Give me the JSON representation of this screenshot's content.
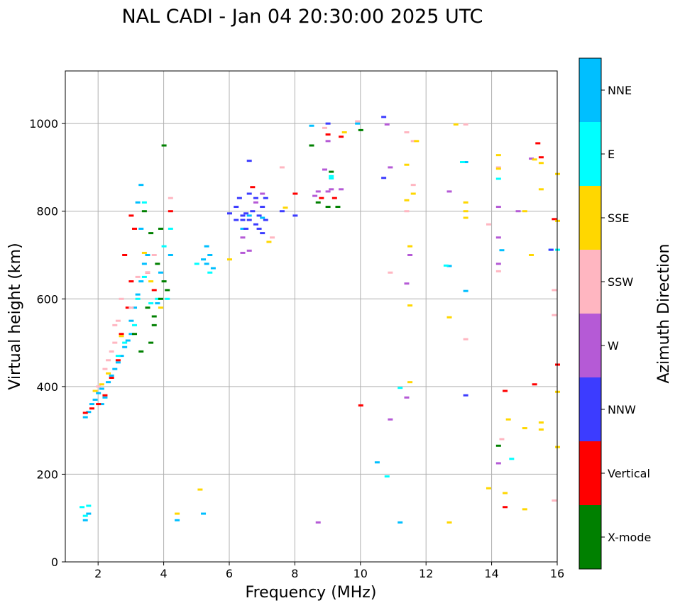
{
  "chart_data": {
    "type": "scatter",
    "title": "NAL CADI - Jan 04 20:30:00 2025 UTC",
    "xlabel": "Frequency (MHz)",
    "ylabel": "Virtual height (km)",
    "xlim": [
      1,
      16
    ],
    "ylim": [
      0,
      1120
    ],
    "xticks": [
      2,
      4,
      6,
      8,
      10,
      12,
      14,
      16
    ],
    "yticks": [
      0,
      200,
      400,
      600,
      800,
      1000
    ],
    "grid": true,
    "colorbar": {
      "label": "Azimuth Direction",
      "categories": [
        {
          "name": "X-mode",
          "color": "#008000"
        },
        {
          "name": "Vertical",
          "color": "#ff0000"
        },
        {
          "name": "NNW",
          "color": "#3c3cff"
        },
        {
          "name": "W",
          "color": "#b55ad6"
        },
        {
          "name": "SSW",
          "color": "#ffb6c1"
        },
        {
          "name": "SSE",
          "color": "#ffd700"
        },
        {
          "name": "E",
          "color": "#00ffff"
        },
        {
          "name": "NNE",
          "color": "#00bfff"
        }
      ]
    },
    "series": [
      {
        "name": "NNE",
        "points": [
          [
            1.6,
            330
          ],
          [
            1.7,
            342
          ],
          [
            1.8,
            360
          ],
          [
            1.9,
            370
          ],
          [
            2.0,
            385
          ],
          [
            2.1,
            395
          ],
          [
            2.3,
            410
          ],
          [
            2.4,
            425
          ],
          [
            2.5,
            440
          ],
          [
            2.6,
            455
          ],
          [
            2.7,
            470
          ],
          [
            2.8,
            490
          ],
          [
            2.9,
            505
          ],
          [
            3.0,
            520
          ],
          [
            3.0,
            550
          ],
          [
            3.1,
            580
          ],
          [
            3.2,
            610
          ],
          [
            3.3,
            640
          ],
          [
            3.4,
            680
          ],
          [
            3.5,
            700
          ],
          [
            3.3,
            760
          ],
          [
            3.2,
            820
          ],
          [
            3.3,
            860
          ],
          [
            2.1,
            360
          ],
          [
            2.2,
            375
          ],
          [
            3.8,
            590
          ],
          [
            3.9,
            660
          ],
          [
            4.2,
            700
          ],
          [
            4.4,
            95
          ],
          [
            5.2,
            690
          ],
          [
            5.3,
            680
          ],
          [
            5.4,
            700
          ],
          [
            5.5,
            670
          ],
          [
            5.3,
            720
          ],
          [
            5.2,
            110
          ],
          [
            6.4,
            760
          ],
          [
            6.6,
            790
          ],
          [
            7.0,
            785
          ],
          [
            8.5,
            995
          ],
          [
            9.9,
            1000
          ],
          [
            13.2,
            912
          ],
          [
            13.2,
            618
          ],
          [
            14.3,
            711
          ],
          [
            15.8,
            712
          ],
          [
            12.7,
            675
          ],
          [
            10.5,
            227
          ],
          [
            11.2,
            90
          ],
          [
            1.6,
            95
          ],
          [
            1.7,
            110
          ]
        ]
      },
      {
        "name": "E",
        "points": [
          [
            1.5,
            125
          ],
          [
            1.7,
            128
          ],
          [
            1.6,
            105
          ],
          [
            2.6,
            470
          ],
          [
            2.8,
            500
          ],
          [
            3.1,
            540
          ],
          [
            3.2,
            600
          ],
          [
            3.4,
            820
          ],
          [
            3.4,
            650
          ],
          [
            3.6,
            590
          ],
          [
            3.8,
            600
          ],
          [
            4.0,
            720
          ],
          [
            4.2,
            760
          ],
          [
            4.1,
            600
          ],
          [
            5.0,
            680
          ],
          [
            5.4,
            660
          ],
          [
            9.1,
            880
          ],
          [
            9.1,
            875
          ],
          [
            10.8,
            195
          ],
          [
            11.2,
            397
          ],
          [
            14.2,
            874
          ],
          [
            12.6,
            676
          ],
          [
            13.1,
            912
          ],
          [
            14.6,
            235
          ],
          [
            16.0,
            712
          ]
        ]
      },
      {
        "name": "X-mode",
        "points": [
          [
            3.1,
            520
          ],
          [
            3.3,
            480
          ],
          [
            3.6,
            500
          ],
          [
            3.7,
            540
          ],
          [
            3.9,
            600
          ],
          [
            4.0,
            640
          ],
          [
            3.8,
            680
          ],
          [
            3.7,
            560
          ],
          [
            4.0,
            950
          ],
          [
            3.6,
            750
          ],
          [
            3.5,
            580
          ],
          [
            4.1,
            620
          ],
          [
            8.5,
            950
          ],
          [
            8.7,
            820
          ],
          [
            9.1,
            890
          ],
          [
            9.0,
            810
          ],
          [
            9.3,
            810
          ],
          [
            10.0,
            985
          ],
          [
            14.2,
            265
          ],
          [
            3.4,
            800
          ],
          [
            3.9,
            760
          ]
        ]
      },
      {
        "name": "Vertical",
        "points": [
          [
            1.6,
            340
          ],
          [
            1.8,
            350
          ],
          [
            2.0,
            360
          ],
          [
            2.2,
            380
          ],
          [
            2.4,
            420
          ],
          [
            2.6,
            460
          ],
          [
            2.7,
            520
          ],
          [
            2.9,
            580
          ],
          [
            3.0,
            640
          ],
          [
            2.8,
            700
          ],
          [
            3.1,
            760
          ],
          [
            3.0,
            790
          ],
          [
            3.5,
            660
          ],
          [
            3.7,
            620
          ],
          [
            4.2,
            800
          ],
          [
            6.7,
            855
          ],
          [
            8.0,
            840
          ],
          [
            8.8,
            830
          ],
          [
            9.2,
            830
          ],
          [
            9.4,
            970
          ],
          [
            10.0,
            357
          ],
          [
            14.4,
            390
          ],
          [
            14.4,
            125
          ],
          [
            15.3,
            405
          ],
          [
            15.4,
            955
          ],
          [
            15.5,
            923
          ],
          [
            16.0,
            450
          ],
          [
            15.9,
            782
          ],
          [
            9.0,
            975
          ]
        ]
      },
      {
        "name": "NNW",
        "points": [
          [
            6.2,
            810
          ],
          [
            6.4,
            790
          ],
          [
            6.5,
            795
          ],
          [
            6.6,
            780
          ],
          [
            6.7,
            800
          ],
          [
            6.8,
            770
          ],
          [
            6.9,
            790
          ],
          [
            7.0,
            810
          ],
          [
            7.1,
            780
          ],
          [
            6.3,
            830
          ],
          [
            6.6,
            840
          ],
          [
            6.8,
            830
          ],
          [
            7.1,
            830
          ],
          [
            6.5,
            760
          ],
          [
            6.9,
            760
          ],
          [
            7.0,
            750
          ],
          [
            6.4,
            780
          ],
          [
            6.2,
            780
          ],
          [
            6.0,
            795
          ],
          [
            7.6,
            800
          ],
          [
            8.0,
            790
          ],
          [
            9.0,
            1000
          ],
          [
            10.7,
            1015
          ],
          [
            10.7,
            876
          ],
          [
            13.2,
            380
          ],
          [
            15.8,
            712
          ],
          [
            6.6,
            915
          ]
        ]
      },
      {
        "name": "W",
        "points": [
          [
            6.8,
            820
          ],
          [
            7.0,
            840
          ],
          [
            6.4,
            740
          ],
          [
            8.6,
            835
          ],
          [
            8.7,
            845
          ],
          [
            9.0,
            845
          ],
          [
            9.4,
            850
          ],
          [
            9.0,
            960
          ],
          [
            9.1,
            850
          ],
          [
            8.9,
            895
          ],
          [
            10.9,
            900
          ],
          [
            10.8,
            998
          ],
          [
            11.5,
            700
          ],
          [
            11.4,
            635
          ],
          [
            11.4,
            375
          ],
          [
            12.7,
            845
          ],
          [
            14.2,
            810
          ],
          [
            14.2,
            740
          ],
          [
            14.2,
            680
          ],
          [
            14.2,
            225
          ],
          [
            14.8,
            800
          ],
          [
            15.2,
            920
          ],
          [
            10.9,
            325
          ],
          [
            8.7,
            90
          ],
          [
            6.6,
            710
          ],
          [
            6.4,
            705
          ]
        ]
      },
      {
        "name": "SSW",
        "points": [
          [
            2.0,
            400
          ],
          [
            2.2,
            440
          ],
          [
            2.3,
            460
          ],
          [
            2.4,
            480
          ],
          [
            2.5,
            500
          ],
          [
            2.5,
            540
          ],
          [
            2.6,
            550
          ],
          [
            2.7,
            600
          ],
          [
            3.0,
            580
          ],
          [
            3.2,
            650
          ],
          [
            3.5,
            660
          ],
          [
            3.7,
            700
          ],
          [
            4.2,
            830
          ],
          [
            7.6,
            900
          ],
          [
            8.9,
            990
          ],
          [
            9.9,
            1005
          ],
          [
            11.4,
            980
          ],
          [
            11.6,
            960
          ],
          [
            11.6,
            860
          ],
          [
            11.4,
            800
          ],
          [
            10.9,
            660
          ],
          [
            13.9,
            770
          ],
          [
            14.2,
            663
          ],
          [
            14.2,
            900
          ],
          [
            15.9,
            620
          ],
          [
            15.9,
            563
          ],
          [
            13.2,
            998
          ],
          [
            13.2,
            508
          ],
          [
            14.3,
            280
          ],
          [
            15.9,
            140
          ],
          [
            7.3,
            740
          ]
        ]
      },
      {
        "name": "SSE",
        "points": [
          [
            1.9,
            390
          ],
          [
            2.1,
            405
          ],
          [
            2.3,
            430
          ],
          [
            2.7,
            515
          ],
          [
            3.4,
            705
          ],
          [
            3.6,
            640
          ],
          [
            3.9,
            580
          ],
          [
            4.4,
            110
          ],
          [
            5.1,
            165
          ],
          [
            6.0,
            690
          ],
          [
            7.2,
            730
          ],
          [
            7.7,
            808
          ],
          [
            9.5,
            980
          ],
          [
            11.4,
            906
          ],
          [
            11.5,
            720
          ],
          [
            11.5,
            585
          ],
          [
            11.5,
            410
          ],
          [
            11.4,
            825
          ],
          [
            11.6,
            840
          ],
          [
            12.7,
            558
          ],
          [
            12.7,
            90
          ],
          [
            13.2,
            820
          ],
          [
            13.2,
            785
          ],
          [
            13.2,
            800
          ],
          [
            12.9,
            998
          ],
          [
            14.2,
            928
          ],
          [
            14.2,
            897
          ],
          [
            14.5,
            325
          ],
          [
            14.4,
            157
          ],
          [
            13.9,
            168
          ],
          [
            15.0,
            120
          ],
          [
            15.0,
            305
          ],
          [
            15.2,
            700
          ],
          [
            15.3,
            918
          ],
          [
            15.5,
            910
          ],
          [
            15.5,
            318
          ],
          [
            15.5,
            302
          ],
          [
            15.5,
            850
          ],
          [
            15.0,
            800
          ],
          [
            16.0,
            885
          ],
          [
            16.0,
            388
          ],
          [
            16.0,
            262
          ],
          [
            16.0,
            778
          ],
          [
            11.7,
            960
          ]
        ]
      }
    ]
  }
}
